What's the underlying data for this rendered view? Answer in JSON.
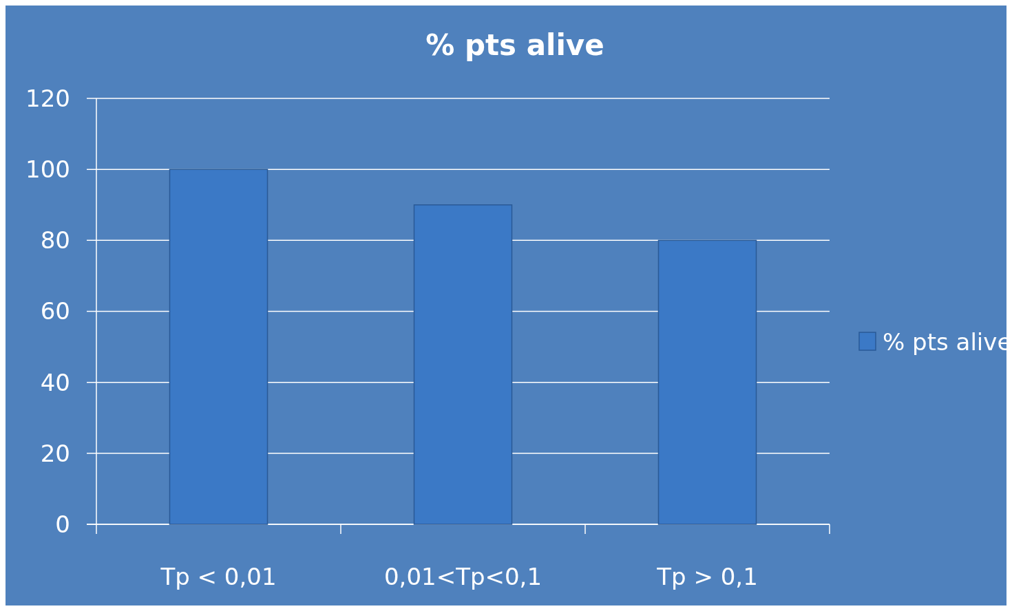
{
  "chart_data": {
    "type": "bar",
    "title": "% pts alive",
    "categories": [
      "Tp < 0,01",
      "0,01<Tp<0,1",
      "Tp > 0,1"
    ],
    "series": [
      {
        "name": "% pts alive",
        "color": "#3b79c6",
        "values": [
          100,
          90,
          80
        ]
      }
    ],
    "ylim": [
      0,
      120
    ],
    "yticks": [
      0,
      20,
      40,
      60,
      80,
      100,
      120
    ],
    "grid": "y",
    "legend": "right"
  }
}
